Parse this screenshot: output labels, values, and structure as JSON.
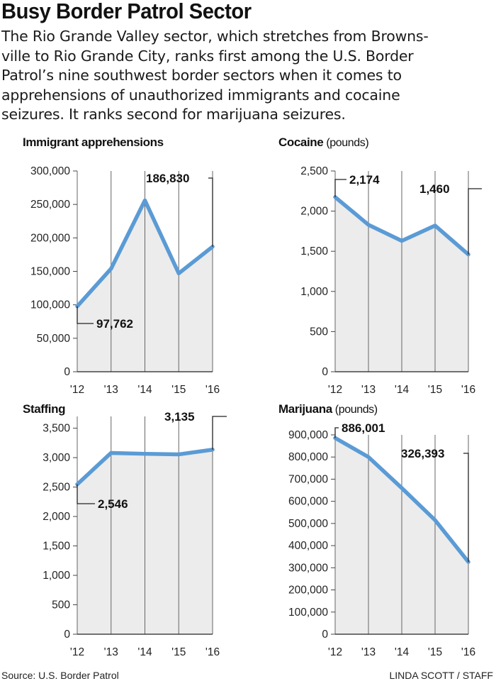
{
  "headline": "Busy Border Patrol Sector",
  "intro_lines": [
    "The Rio Grande Valley sector, which stretches from Browns-",
    "ville to Rio Grande City, ranks first among the U.S. Border",
    "Patrol’s nine southwest border sectors when it comes to",
    "apprehensions of unauthorized immigrants and cocaine",
    "seizures. It ranks second for marijuana seizures."
  ],
  "source": "Source: U.S. Border Patrol",
  "credit": "LINDA SCOTT / STAFF",
  "colors": {
    "line": "#5b9bd5",
    "fill": "#ececec",
    "grid": "#666666",
    "text": "#111111"
  },
  "chart_data": [
    {
      "type": "area",
      "title": "Immigrant apprehensions",
      "unit": "",
      "x": [
        "'12",
        "'13",
        "'14",
        "'15",
        "'16"
      ],
      "values": [
        97762,
        154000,
        256000,
        147000,
        186830
      ],
      "ylim": [
        0,
        300000
      ],
      "yticks": [
        "0",
        "50,000",
        "100,000",
        "150,000",
        "200,000",
        "250,000",
        "300,000"
      ],
      "labels": [
        {
          "index": 0,
          "text": "97,762"
        },
        {
          "index": 4,
          "text": "186,830"
        }
      ]
    },
    {
      "type": "area",
      "title": "Cocaine",
      "unit": "(pounds)",
      "x": [
        "'12",
        "'13",
        "'14",
        "'15",
        "'16"
      ],
      "values": [
        2174,
        1830,
        1630,
        1820,
        1460
      ],
      "ylim": [
        0,
        2500
      ],
      "yticks": [
        "0",
        "500",
        "1,000",
        "1,500",
        "2,000",
        "2,500"
      ],
      "labels": [
        {
          "index": 0,
          "text": "2,174"
        },
        {
          "index": 4,
          "text": "1,460"
        }
      ]
    },
    {
      "type": "area",
      "title": "Staffing",
      "unit": "",
      "x": [
        "'12",
        "'13",
        "'14",
        "'15",
        "'16"
      ],
      "values": [
        2546,
        3080,
        3065,
        3055,
        3135
      ],
      "ylim": [
        0,
        3700
      ],
      "yticks": [
        "0",
        "500",
        "1,000",
        "1,500",
        "2,000",
        "2,500",
        "3,000",
        "3,500"
      ],
      "labels": [
        {
          "index": 0,
          "text": "2,546"
        },
        {
          "index": 4,
          "text": "3,135"
        }
      ]
    },
    {
      "type": "area",
      "title": "Marijuana",
      "unit": "(pounds)",
      "x": [
        "'12",
        "'13",
        "'14",
        "'15",
        "'16"
      ],
      "values": [
        886001,
        800000,
        660000,
        515000,
        326393
      ],
      "ylim": [
        0,
        900000
      ],
      "yticks": [
        "0",
        "100,000",
        "200,000",
        "300,000",
        "400,000",
        "500,000",
        "600,000",
        "700,000",
        "800,000",
        "900,000"
      ],
      "labels": [
        {
          "index": 0,
          "text": "886,001"
        },
        {
          "index": 4,
          "text": "326,393"
        }
      ]
    }
  ]
}
